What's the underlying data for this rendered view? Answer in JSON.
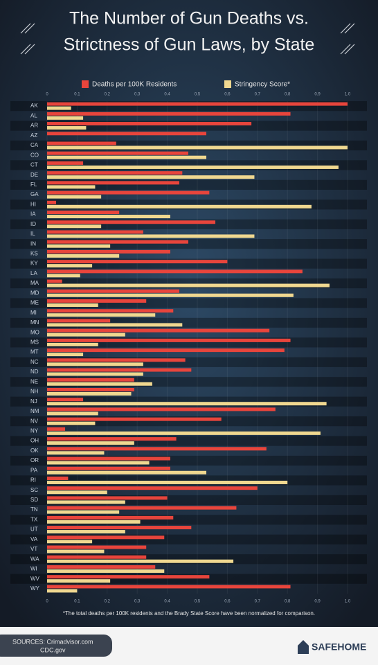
{
  "chart_data": {
    "type": "bar",
    "orientation": "horizontal",
    "title": [
      "The Number of Gun Deaths vs.",
      "Strictness of Gun Laws, by State"
    ],
    "categories": [
      "AK",
      "AL",
      "AR",
      "AZ",
      "CA",
      "CO",
      "CT",
      "DE",
      "FL",
      "GA",
      "HI",
      "IA",
      "ID",
      "IL",
      "IN",
      "KS",
      "KY",
      "LA",
      "MA",
      "MD",
      "ME",
      "MI",
      "MN",
      "MO",
      "MS",
      "MT",
      "NC",
      "ND",
      "NE",
      "NH",
      "NJ",
      "NM",
      "NV",
      "NY",
      "OH",
      "OK",
      "OR",
      "PA",
      "RI",
      "SC",
      "SD",
      "TN",
      "TX",
      "UT",
      "VA",
      "VT",
      "WA",
      "WI",
      "WV",
      "WY"
    ],
    "series": [
      {
        "name": "Deaths per 100K Residents",
        "color": "#e8453c",
        "values": [
          1.0,
          0.81,
          0.68,
          0.53,
          0.23,
          0.47,
          0.12,
          0.45,
          0.44,
          0.54,
          0.03,
          0.24,
          0.56,
          0.32,
          0.47,
          0.41,
          0.6,
          0.85,
          0.05,
          0.44,
          0.33,
          0.42,
          0.21,
          0.74,
          0.81,
          0.79,
          0.46,
          0.48,
          0.29,
          0.29,
          0.12,
          0.76,
          0.58,
          0.06,
          0.43,
          0.73,
          0.41,
          0.41,
          0.07,
          0.7,
          0.4,
          0.63,
          0.42,
          0.48,
          0.39,
          0.33,
          0.33,
          0.36,
          0.54,
          0.81
        ]
      },
      {
        "name": "Stringency Score*",
        "color": "#f0d890",
        "values": [
          0.08,
          0.12,
          0.13,
          0,
          1.0,
          0.53,
          0.97,
          0.69,
          0.16,
          0.18,
          0.88,
          0.41,
          0.18,
          0.69,
          0.21,
          0.24,
          0.15,
          0.11,
          0.94,
          0.82,
          0.17,
          0.36,
          0.45,
          0.26,
          0.17,
          0.12,
          0.32,
          0.32,
          0.35,
          0.28,
          0.93,
          0.17,
          0.16,
          0.91,
          0.29,
          0.19,
          0.34,
          0.53,
          0.8,
          0.2,
          0.26,
          0.24,
          0.31,
          0.26,
          0.15,
          0.19,
          0.62,
          0.39,
          0.21,
          0.1
        ]
      }
    ],
    "xlim": [
      0,
      1
    ],
    "xticks": [
      0,
      0.1,
      0.2,
      0.3,
      0.4,
      0.5,
      0.6,
      0.7,
      0.8,
      0.9,
      {
        "value": 1,
        "label": "1.0"
      }
    ],
    "grid": true,
    "legend": "top",
    "footnote": "*The total deaths per 100K residents and the Brady State Score have been normalized for comparison."
  },
  "footer": {
    "sources": [
      "SOURCES: Crimadvisor.com",
      "CDC.gov"
    ],
    "brand": "SAFEHOME"
  }
}
